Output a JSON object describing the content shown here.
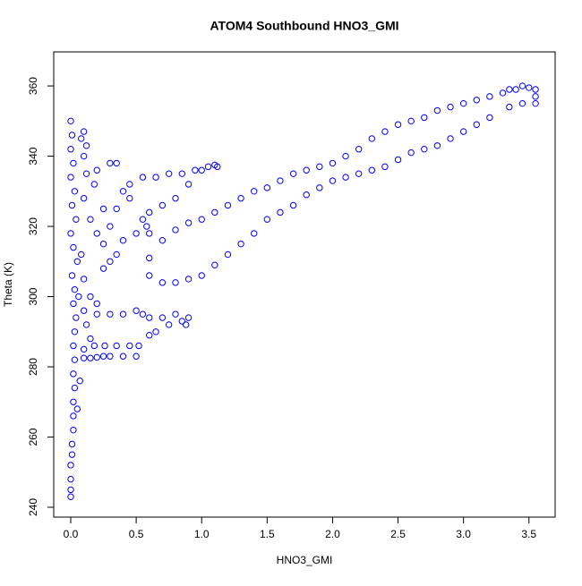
{
  "chart_data": {
    "type": "scatter",
    "title": "ATOM4 Southbound HNO3_GMI",
    "x_label": "HNO3_GMI",
    "y_label": "Theta (K)",
    "color": "#0000ff",
    "grid": false,
    "xlim": [
      -0.13,
      3.7
    ],
    "ylim": [
      237.2,
      369.7
    ],
    "xticks": [
      {
        "value": 0,
        "label": "0.0"
      },
      {
        "value": 0.5,
        "label": "0.5"
      },
      {
        "value": 1,
        "label": "1.0"
      },
      {
        "value": 1.5,
        "label": "1.5"
      },
      {
        "value": 2,
        "label": "2.0"
      },
      {
        "value": 2.5,
        "label": "2.5"
      },
      {
        "value": 3,
        "label": "3.0"
      },
      {
        "value": 3.5,
        "label": "3.5"
      }
    ],
    "yticks": [
      240,
      260,
      280,
      300,
      320,
      340,
      360
    ],
    "series": [
      {
        "name": "HNO3_GMI",
        "x": [
          0,
          0,
          0,
          0,
          0.01,
          0.01,
          0.02,
          0.02,
          0.02,
          0.03,
          0.02,
          0.03,
          0.02,
          0.03,
          0.04,
          0.02,
          0.03,
          0.01,
          0.05,
          0.02,
          0,
          0.04,
          0.01,
          0.03,
          0,
          0.02,
          0,
          0.01,
          0,
          0.08,
          0.1,
          0.12,
          0.1,
          0.15,
          0.2,
          0.25,
          0.3,
          0.35,
          0.4,
          0.45,
          0.3,
          0.35,
          0.2,
          0.1,
          0.12,
          0.18,
          0.25,
          0.08,
          0.1,
          0.15,
          0.2,
          0.25,
          0.3,
          0.35,
          0.4,
          0.5,
          0.55,
          0.58,
          0.6,
          0.06,
          0.1,
          0.12,
          0.15,
          0.1,
          0.18,
          0.26,
          0.35,
          0.45,
          0.52,
          0.07,
          0.05,
          0.1,
          0.15,
          0.2,
          0.25,
          0.3,
          0.4,
          0.5,
          0.2,
          0.3,
          0.4,
          0.5,
          0.55,
          0.6,
          0.7,
          0.8,
          0.85,
          0.9,
          0.88,
          0.75,
          0.65,
          0.6,
          0.45,
          0.55,
          0.65,
          0.75,
          0.85,
          0.95,
          1.05,
          1.1,
          1.12,
          1.0,
          0.9,
          0.8,
          0.7,
          0.6,
          0.6,
          0.7,
          0.8,
          0.9,
          1.0,
          1.1,
          1.2,
          1.3,
          1.4,
          1.5,
          1.6,
          1.7,
          1.8,
          1.9,
          2.0,
          2.1,
          2.2,
          2.3,
          2.4,
          2.5,
          2.6,
          2.7,
          2.8,
          2.9,
          3.0,
          3.1,
          3.2,
          3.3,
          3.35,
          3.4,
          3.45,
          3.5,
          3.55,
          3.55,
          3.55,
          3.45,
          3.35,
          3.2,
          3.1,
          3.0,
          2.9,
          2.8,
          2.7,
          2.6,
          2.5,
          2.4,
          2.3,
          2.2,
          2.1,
          2.0,
          1.9,
          1.8,
          1.7,
          1.6,
          1.5,
          1.4,
          1.3,
          1.2,
          1.1,
          1.0,
          0.9,
          0.8,
          0.7,
          0.6
        ],
        "values": [
          243,
          245,
          248,
          252,
          255,
          258,
          262,
          266,
          270,
          274,
          278,
          282,
          286,
          290,
          294,
          298,
          302,
          306,
          310,
          314,
          318,
          322,
          326,
          330,
          334,
          338,
          342,
          346,
          350,
          345,
          340,
          335,
          328,
          322,
          318,
          315,
          320,
          325,
          330,
          328,
          338,
          338,
          336,
          347,
          343,
          332,
          325,
          312,
          305,
          300,
          298,
          308,
          310,
          312,
          316,
          318,
          322,
          320,
          318,
          300,
          296,
          292,
          288,
          285,
          286,
          286,
          286,
          286,
          286,
          276,
          268,
          282.5,
          282.5,
          282.7,
          283,
          283,
          283,
          283,
          295,
          295,
          295,
          296,
          295,
          294,
          294,
          295,
          293,
          294,
          292,
          292,
          290,
          289,
          332,
          334,
          334,
          335,
          335,
          336,
          337,
          337.5,
          337,
          336,
          332,
          328,
          326,
          324,
          311,
          316,
          319,
          321,
          322,
          324,
          326,
          328,
          330,
          331,
          333,
          335,
          336,
          337,
          338,
          340,
          342,
          345,
          347,
          349,
          350,
          351,
          353,
          354,
          355,
          356,
          357,
          358,
          359,
          359,
          360,
          359.5,
          359,
          357,
          355,
          355,
          354,
          351,
          349,
          347,
          345,
          343,
          342,
          341,
          339,
          337,
          336,
          335,
          334,
          333,
          331,
          329,
          326,
          324,
          322,
          318,
          315,
          312,
          309,
          306,
          305,
          304,
          304,
          306
        ]
      }
    ]
  }
}
